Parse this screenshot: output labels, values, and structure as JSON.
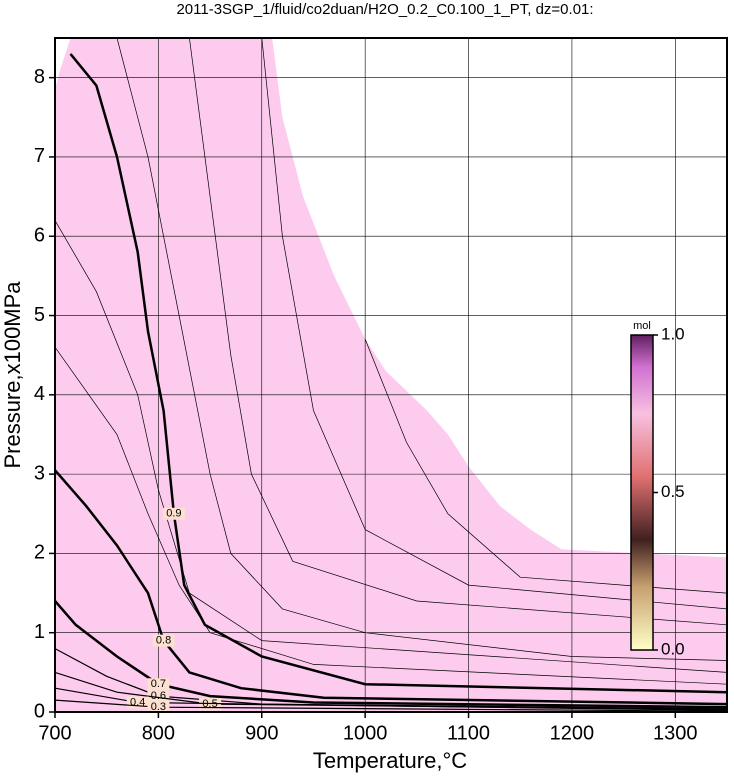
{
  "chart_data": {
    "type": "contour",
    "title": "2011-3SGP_1/fluid/co2duan/H2O_0.2_C0.100_1_PT, dz=0.01:",
    "x_label": "Temperature,°C",
    "y_label": "Pressure,x100MPa",
    "xlim": [
      700,
      1350
    ],
    "ylim": [
      0,
      8.5
    ],
    "xticks": [
      700,
      800,
      900,
      1000,
      1100,
      1200,
      1300
    ],
    "yticks": [
      0,
      1,
      2,
      3,
      4,
      5,
      6,
      7,
      8
    ],
    "grid": true,
    "region": {
      "color": "#fccbee",
      "x": [
        700,
        700,
        705,
        715,
        910,
        920,
        940,
        970,
        1000,
        1020,
        1040,
        1060,
        1080,
        1100,
        1130,
        1160,
        1190,
        1350,
        1350
      ],
      "y": [
        0,
        7.85,
        8.1,
        8.5,
        8.5,
        7.5,
        6.5,
        5.5,
        4.7,
        4.3,
        4.05,
        3.8,
        3.5,
        3.1,
        2.6,
        2.3,
        2.05,
        1.95,
        0
      ]
    },
    "contours": [
      {
        "level": 0.9,
        "x": [
          715,
          740,
          760,
          780,
          790,
          805,
          815,
          825,
          845,
          900,
          1000,
          1350
        ],
        "y": [
          8.3,
          7.9,
          7.0,
          5.8,
          4.8,
          3.8,
          2.5,
          1.6,
          1.1,
          0.7,
          0.35,
          0.25
        ]
      },
      {
        "level": 0.8,
        "x": [
          700,
          730,
          760,
          790,
          805,
          830,
          880,
          960,
          1350
        ],
        "y": [
          3.05,
          2.6,
          2.1,
          1.5,
          0.9,
          0.5,
          0.3,
          0.18,
          0.1
        ]
      },
      {
        "level": 0.7,
        "x": [
          700,
          720,
          760,
          800,
          850,
          950,
          1350
        ],
        "y": [
          1.4,
          1.1,
          0.7,
          0.35,
          0.2,
          0.12,
          0.06
        ]
      },
      {
        "level": 0.6,
        "x": [
          700,
          750,
          800,
          900,
          1350
        ],
        "y": [
          0.8,
          0.45,
          0.2,
          0.1,
          0.04
        ]
      },
      {
        "level": 0.5,
        "x": [
          700,
          760,
          850,
          1350
        ],
        "y": [
          0.5,
          0.25,
          0.1,
          0.03
        ]
      },
      {
        "level": 0.4,
        "x": [
          700,
          780,
          1350
        ],
        "y": [
          0.3,
          0.12,
          0.02
        ]
      },
      {
        "level": 0.3,
        "x": [
          700,
          800,
          1350
        ],
        "y": [
          0.15,
          0.06,
          0.01
        ]
      }
    ],
    "thin_contours": [
      {
        "x": [
          700,
          740,
          780,
          800,
          830,
          900,
          1350
        ],
        "y": [
          6.2,
          5.3,
          4.0,
          2.8,
          1.5,
          0.9,
          0.5
        ]
      },
      {
        "x": [
          700,
          760,
          790,
          820,
          850,
          950,
          1350
        ],
        "y": [
          4.6,
          3.5,
          2.5,
          1.6,
          1.0,
          0.6,
          0.35
        ]
      },
      {
        "x": [
          760,
          790,
          820,
          850,
          870,
          920,
          1000,
          1200,
          1350
        ],
        "y": [
          8.5,
          7.0,
          5.0,
          3.0,
          2.0,
          1.3,
          1.0,
          0.7,
          0.65
        ]
      },
      {
        "x": [
          830,
          850,
          870,
          890,
          930,
          1050,
          1350
        ],
        "y": [
          8.5,
          6.5,
          4.5,
          3.0,
          1.9,
          1.4,
          1.1
        ]
      },
      {
        "x": [
          900,
          920,
          950,
          1000,
          1100,
          1350
        ],
        "y": [
          8.5,
          6.0,
          3.8,
          2.3,
          1.6,
          1.3
        ]
      },
      {
        "x": [
          1000,
          1040,
          1080,
          1150,
          1350
        ],
        "y": [
          4.7,
          3.4,
          2.5,
          1.7,
          1.5
        ]
      }
    ],
    "colorbar": {
      "label": "mol",
      "ticks": [
        {
          "value": 0,
          "label": "0.0"
        },
        0.5,
        {
          "value": 1,
          "label": "1.0"
        }
      ]
    }
  }
}
